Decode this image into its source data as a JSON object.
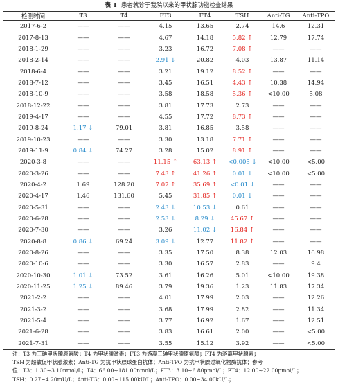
{
  "caption": {
    "label": "表 1",
    "title": "患者就诊于我院以来的甲状腺功能检查结果"
  },
  "table": {
    "tones": {
      "high": "#e3211c",
      "low": "#1f86c8"
    },
    "columns": [
      "检测时间",
      "T3",
      "T4",
      "FT3",
      "FT4",
      "TSH",
      "Anti-TG",
      "Anti-TPO"
    ],
    "rows": [
      [
        "2017-6-2",
        "——",
        "——",
        "4.15",
        "13.65",
        "2.74",
        "14.6",
        "12.31"
      ],
      [
        "2017-8-13",
        "——",
        "——",
        "4.67",
        "14.18",
        {
          "text": "5.82 ↑",
          "tone": "high"
        },
        "12.79",
        "17.74"
      ],
      [
        "2018-1-29",
        "——",
        "——",
        "3.23",
        "16.72",
        {
          "text": "7.08 ↑",
          "tone": "high"
        },
        "——",
        "——"
      ],
      [
        "2018-2-14",
        "——",
        "——",
        {
          "text": "2.91 ↓",
          "tone": "low"
        },
        "20.82",
        "4.03",
        "13.87",
        "11.14"
      ],
      [
        "2018-6-4",
        "——",
        "——",
        "3.21",
        "19.12",
        {
          "text": "8.52 ↑",
          "tone": "high"
        },
        "——",
        "——"
      ],
      [
        "2018-7-12",
        "——",
        "——",
        "3.45",
        "16.51",
        {
          "text": "4.43 ↑",
          "tone": "high"
        },
        "10.38",
        "14.94"
      ],
      [
        "2018-10-9",
        "——",
        "——",
        "3.58",
        "18.58",
        {
          "text": "5.36 ↑",
          "tone": "high"
        },
        "<10.00",
        "5.08"
      ],
      [
        "2018-12-22",
        "——",
        "——",
        "3.81",
        "17.73",
        "2.73",
        "——",
        "——"
      ],
      [
        "2019-4-17",
        "——",
        "——",
        "4.55",
        "17.72",
        {
          "text": "8.73 ↑",
          "tone": "high"
        },
        "——",
        "——"
      ],
      [
        "2019-8-24",
        {
          "text": "1.17 ↓",
          "tone": "low"
        },
        "79.01",
        "3.81",
        "16.85",
        "3.58",
        "——",
        "——"
      ],
      [
        "2019-10-23",
        "——",
        "——",
        "3.30",
        "13.18",
        {
          "text": "7.71 ↑",
          "tone": "high"
        },
        "——",
        "——"
      ],
      [
        "2019-11-9",
        {
          "text": "0.84 ↓",
          "tone": "low"
        },
        "74.27",
        "3.28",
        "15.02",
        {
          "text": "8.91 ↑",
          "tone": "high"
        },
        "——",
        "——"
      ],
      [
        "2020-3-8",
        "——",
        "——",
        {
          "text": "11.15 ↑",
          "tone": "high"
        },
        {
          "text": "63.13 ↑",
          "tone": "high"
        },
        {
          "text": "<0.005 ↓",
          "tone": "low"
        },
        "<10.00",
        "<5.00"
      ],
      [
        "2020-3-26",
        "——",
        "——",
        {
          "text": "7.43 ↑",
          "tone": "high"
        },
        {
          "text": "41.26 ↑",
          "tone": "high"
        },
        {
          "text": "0.01 ↓",
          "tone": "low"
        },
        "<10.00",
        "<5.00"
      ],
      [
        "2020-4-2",
        "1.69",
        "128.20",
        {
          "text": "7.07 ↑",
          "tone": "high"
        },
        {
          "text": "35.69 ↑",
          "tone": "high"
        },
        {
          "text": "<0.01 ↓",
          "tone": "low"
        },
        "——",
        "——"
      ],
      [
        "2020-4-17",
        "1.46",
        "131.60",
        "5.45",
        {
          "text": "31.85 ↑",
          "tone": "high"
        },
        {
          "text": "0.01 ↓",
          "tone": "low"
        },
        "——",
        "——"
      ],
      [
        "2020-5-31",
        "——",
        "——",
        {
          "text": "2.43 ↓",
          "tone": "low"
        },
        {
          "text": "10.53 ↓",
          "tone": "low"
        },
        "0.61",
        "——",
        "——"
      ],
      [
        "2020-6-28",
        "——",
        "——",
        {
          "text": "2.53 ↓",
          "tone": "low"
        },
        {
          "text": "8.29 ↓",
          "tone": "low"
        },
        {
          "text": "45.67 ↑",
          "tone": "high"
        },
        "——",
        "——"
      ],
      [
        "2020-7-30",
        "——",
        "——",
        "3.26",
        {
          "text": "11.02 ↓",
          "tone": "low"
        },
        {
          "text": "16.84 ↑",
          "tone": "high"
        },
        "——",
        "——"
      ],
      [
        "2020-8-8",
        {
          "text": "0.86 ↓",
          "tone": "low"
        },
        "69.24",
        {
          "text": "3.09 ↓",
          "tone": "low"
        },
        "12.77",
        {
          "text": "11.82 ↑",
          "tone": "high"
        },
        "——",
        "——"
      ],
      [
        "2020-8-26",
        "——",
        "——",
        "3.35",
        "17.50",
        "8.38",
        "12.03",
        "16.98"
      ],
      [
        "2020-10-6",
        "——",
        "——",
        "3.30",
        "16.57",
        "2.83",
        "——",
        "9.4"
      ],
      [
        "2020-10-30",
        {
          "text": "1.01 ↓",
          "tone": "low"
        },
        "73.52",
        "3.61",
        "16.26",
        "5.01",
        "<10.00",
        "19.38"
      ],
      [
        "2020-11-25",
        {
          "text": "1.25 ↓",
          "tone": "low"
        },
        "89.46",
        "3.79",
        "19.36",
        "1.23",
        "11.83",
        "17.34"
      ],
      [
        "2021-2-2",
        "——",
        "——",
        "4.01",
        "17.99",
        "2.03",
        "——",
        "12.26"
      ],
      [
        "2021-3-2",
        "——",
        "——",
        "3.68",
        "17.99",
        "2.82",
        "——",
        "11.34"
      ],
      [
        "2021-5-4",
        "——",
        "——",
        "3.77",
        "16.92",
        "1.67",
        "——",
        "12.51"
      ],
      [
        "2021-6-28",
        "——",
        "——",
        "3.83",
        "16.61",
        "2.00",
        "——",
        "<5.00"
      ],
      [
        "2021-7-31",
        "——",
        "——",
        "3.55",
        "15.12",
        "3.92",
        "——",
        "<5.00"
      ]
    ]
  },
  "notes": [
    "注：T3 为三碘甲状腺原氨酸；T4 为甲状腺激素；FT3 为游离三碘甲状腺原氨酸；FT4 为游离甲状腺素；",
    "TSH 为超敏促甲状腺激素；Anti-TG 为抗甲状腺球蛋白抗体；Anti-TPO 为抗甲状腺过氧化物酶抗体；参考",
    "值：T3：1.30~3.10nmol/L；T4：66.00~181.00nmol/L；FT3：3.10~6.80pmol/L；FT4：12.00~22.00pmol/L；",
    "TSH：0.27~4.20mU/L；Anti-TG：0.00~115.00kU/L；Anti-TPO：0.00~34.00kU/L；"
  ]
}
